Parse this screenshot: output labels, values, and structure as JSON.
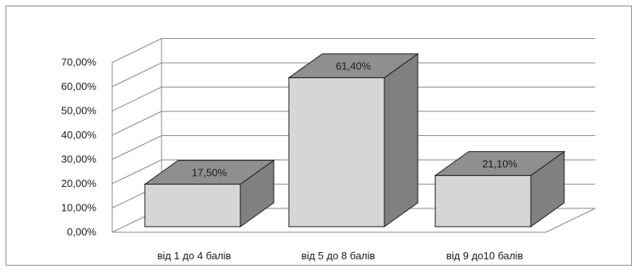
{
  "chart_data": {
    "type": "bar",
    "style": "3d-column",
    "title": "",
    "xlabel": "",
    "ylabel": "",
    "categories": [
      "від 1 до 4 балів",
      "від 5 до 8 балів",
      "від 9 до10 балів"
    ],
    "values": [
      17.5,
      61.4,
      21.1
    ],
    "data_labels": [
      "17,50%",
      "61,40%",
      "21,10%"
    ],
    "ylim": [
      0,
      70
    ],
    "y_ticks": [
      0,
      10,
      20,
      30,
      40,
      50,
      60,
      70
    ],
    "y_tick_labels": [
      "0,00%",
      "10,00%",
      "20,00%",
      "30,00%",
      "40,00%",
      "50,00%",
      "60,00%",
      "70,00%"
    ],
    "grid": true,
    "legend": "none",
    "colors": {
      "bar_front": "#d6d6d6",
      "bar_top": "#8f8f8f",
      "bar_side": "#808080",
      "gridline": "#8a8a8a",
      "outline": "#1a1a1a"
    }
  }
}
